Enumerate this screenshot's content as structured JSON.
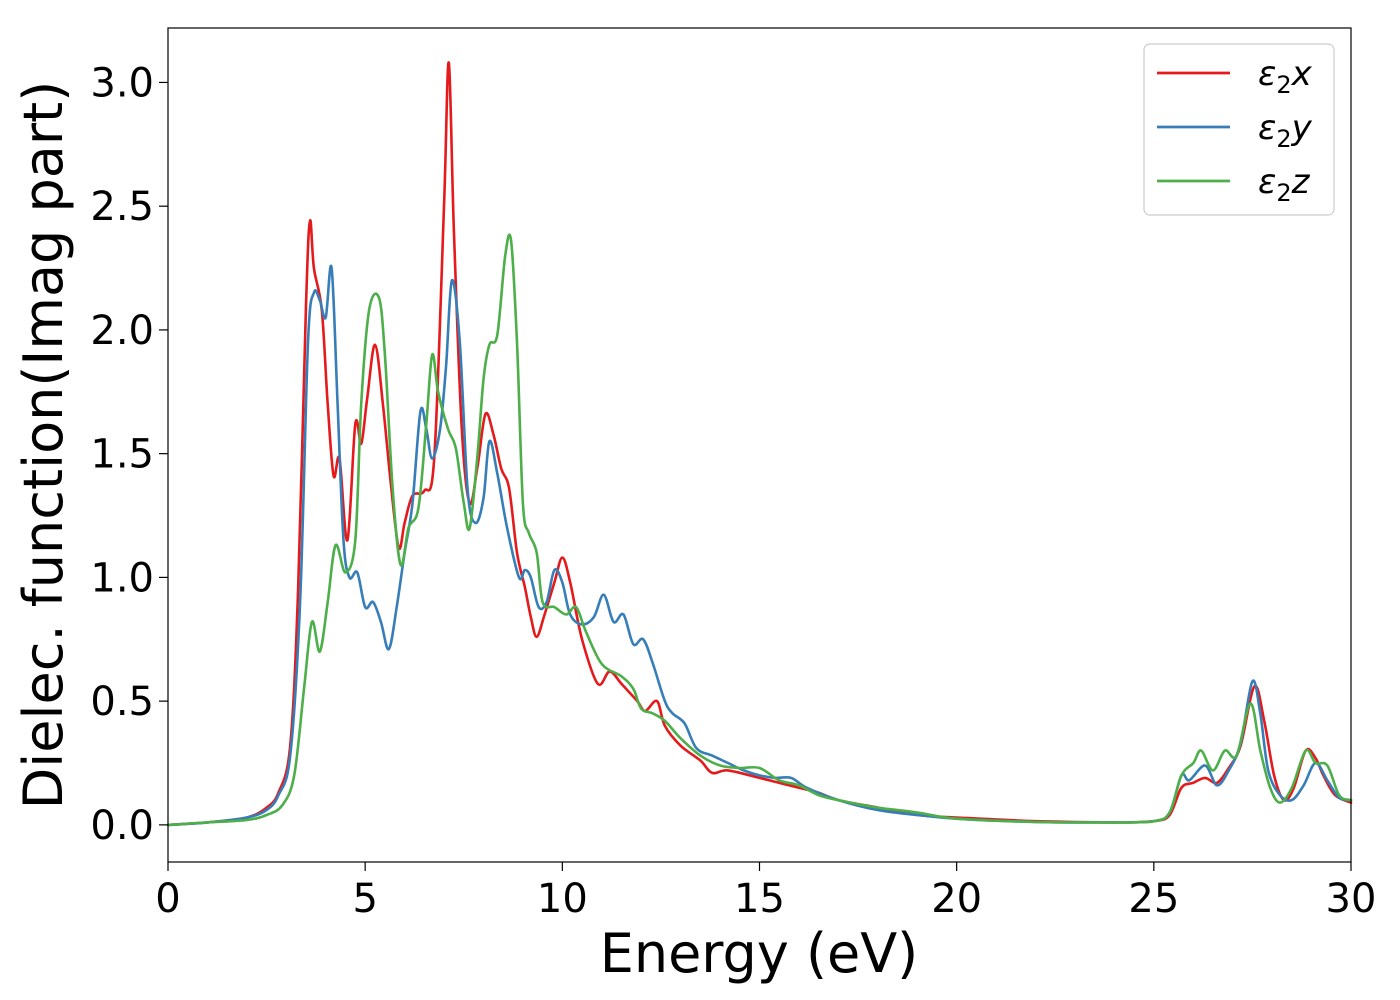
{
  "chart_data": {
    "type": "line",
    "title": "",
    "xlabel": "Energy (eV)",
    "ylabel": "Dielec. function(Imag part)",
    "xlim": [
      0,
      30
    ],
    "ylim": [
      -0.15,
      3.22
    ],
    "xticks": [
      0,
      5,
      10,
      15,
      20,
      25,
      30
    ],
    "xtick_labels": [
      "0",
      "5",
      "10",
      "15",
      "20",
      "25",
      "30"
    ],
    "yticks": [
      0.0,
      0.5,
      1.0,
      1.5,
      2.0,
      2.5,
      3.0
    ],
    "ytick_labels": [
      "0.0",
      "0.5",
      "1.0",
      "1.5",
      "2.0",
      "2.5",
      "3.0"
    ],
    "grid": false,
    "legend": "top-right",
    "series": [
      {
        "name": "ε2x",
        "legend_base": "ε",
        "legend_sub": "2",
        "legend_var": "x",
        "color": "#e41a1c",
        "points": [
          [
            0,
            0
          ],
          [
            1,
            0.01
          ],
          [
            2,
            0.03
          ],
          [
            2.5,
            0.07
          ],
          [
            2.8,
            0.13
          ],
          [
            3.1,
            0.32
          ],
          [
            3.3,
            0.95
          ],
          [
            3.5,
            2.1
          ],
          [
            3.6,
            2.44
          ],
          [
            3.7,
            2.25
          ],
          [
            3.9,
            2.08
          ],
          [
            4.05,
            1.7
          ],
          [
            4.2,
            1.41
          ],
          [
            4.35,
            1.48
          ],
          [
            4.55,
            1.15
          ],
          [
            4.75,
            1.62
          ],
          [
            4.9,
            1.54
          ],
          [
            5.05,
            1.72
          ],
          [
            5.25,
            1.94
          ],
          [
            5.45,
            1.7
          ],
          [
            5.65,
            1.38
          ],
          [
            5.85,
            1.12
          ],
          [
            6.0,
            1.22
          ],
          [
            6.2,
            1.33
          ],
          [
            6.5,
            1.35
          ],
          [
            6.75,
            1.48
          ],
          [
            7.0,
            2.5
          ],
          [
            7.12,
            3.08
          ],
          [
            7.25,
            2.4
          ],
          [
            7.45,
            1.6
          ],
          [
            7.65,
            1.3
          ],
          [
            7.85,
            1.45
          ],
          [
            8.05,
            1.66
          ],
          [
            8.25,
            1.58
          ],
          [
            8.45,
            1.44
          ],
          [
            8.65,
            1.36
          ],
          [
            8.85,
            1.1
          ],
          [
            9.05,
            0.96
          ],
          [
            9.2,
            0.84
          ],
          [
            9.35,
            0.76
          ],
          [
            9.55,
            0.85
          ],
          [
            9.8,
            0.98
          ],
          [
            10.0,
            1.08
          ],
          [
            10.2,
            0.98
          ],
          [
            10.5,
            0.75
          ],
          [
            10.9,
            0.57
          ],
          [
            11.2,
            0.62
          ],
          [
            11.5,
            0.57
          ],
          [
            11.9,
            0.5
          ],
          [
            12.1,
            0.46
          ],
          [
            12.4,
            0.5
          ],
          [
            12.6,
            0.4
          ],
          [
            13,
            0.32
          ],
          [
            13.5,
            0.26
          ],
          [
            13.8,
            0.21
          ],
          [
            14.2,
            0.22
          ],
          [
            15,
            0.19
          ],
          [
            15.5,
            0.17
          ],
          [
            16,
            0.15
          ],
          [
            16.5,
            0.13
          ],
          [
            17,
            0.1
          ],
          [
            18,
            0.07
          ],
          [
            19,
            0.04
          ],
          [
            20,
            0.03
          ],
          [
            22,
            0.015
          ],
          [
            24,
            0.01
          ],
          [
            25,
            0.015
          ],
          [
            25.4,
            0.04
          ],
          [
            25.7,
            0.15
          ],
          [
            26,
            0.17
          ],
          [
            26.3,
            0.19
          ],
          [
            26.6,
            0.17
          ],
          [
            26.9,
            0.23
          ],
          [
            27.2,
            0.32
          ],
          [
            27.55,
            0.56
          ],
          [
            27.8,
            0.42
          ],
          [
            28.05,
            0.2
          ],
          [
            28.3,
            0.1
          ],
          [
            28.55,
            0.15
          ],
          [
            28.85,
            0.3
          ],
          [
            29.1,
            0.27
          ],
          [
            29.3,
            0.2
          ],
          [
            29.6,
            0.12
          ],
          [
            30,
            0.09
          ]
        ]
      },
      {
        "name": "ε2y",
        "legend_base": "ε",
        "legend_sub": "2",
        "legend_var": "y",
        "color": "#377eb8",
        "points": [
          [
            0,
            0
          ],
          [
            1,
            0.01
          ],
          [
            2,
            0.03
          ],
          [
            2.5,
            0.06
          ],
          [
            2.8,
            0.12
          ],
          [
            3.1,
            0.28
          ],
          [
            3.35,
            0.9
          ],
          [
            3.55,
            1.95
          ],
          [
            3.7,
            2.15
          ],
          [
            3.85,
            2.12
          ],
          [
            4.0,
            2.05
          ],
          [
            4.15,
            2.25
          ],
          [
            4.3,
            1.7
          ],
          [
            4.45,
            1.15
          ],
          [
            4.6,
            1.0
          ],
          [
            4.8,
            1.02
          ],
          [
            5.0,
            0.88
          ],
          [
            5.2,
            0.9
          ],
          [
            5.4,
            0.82
          ],
          [
            5.6,
            0.71
          ],
          [
            5.8,
            0.88
          ],
          [
            6.0,
            1.1
          ],
          [
            6.2,
            1.3
          ],
          [
            6.4,
            1.67
          ],
          [
            6.55,
            1.6
          ],
          [
            6.7,
            1.48
          ],
          [
            6.9,
            1.6
          ],
          [
            7.05,
            1.85
          ],
          [
            7.2,
            2.2
          ],
          [
            7.4,
            1.95
          ],
          [
            7.6,
            1.35
          ],
          [
            7.8,
            1.22
          ],
          [
            8.0,
            1.32
          ],
          [
            8.15,
            1.55
          ],
          [
            8.35,
            1.42
          ],
          [
            8.6,
            1.2
          ],
          [
            8.9,
            1.0
          ],
          [
            9.05,
            1.03
          ],
          [
            9.2,
            1.0
          ],
          [
            9.4,
            0.88
          ],
          [
            9.6,
            0.9
          ],
          [
            9.8,
            1.03
          ],
          [
            10.0,
            0.98
          ],
          [
            10.2,
            0.85
          ],
          [
            10.5,
            0.81
          ],
          [
            10.8,
            0.84
          ],
          [
            11.05,
            0.93
          ],
          [
            11.3,
            0.82
          ],
          [
            11.55,
            0.85
          ],
          [
            11.8,
            0.73
          ],
          [
            12.05,
            0.75
          ],
          [
            12.3,
            0.65
          ],
          [
            12.6,
            0.5
          ],
          [
            12.8,
            0.45
          ],
          [
            13.1,
            0.41
          ],
          [
            13.4,
            0.31
          ],
          [
            13.8,
            0.28
          ],
          [
            14.2,
            0.25
          ],
          [
            14.6,
            0.22
          ],
          [
            15,
            0.2
          ],
          [
            15.4,
            0.19
          ],
          [
            15.8,
            0.19
          ],
          [
            16.2,
            0.15
          ],
          [
            17,
            0.1
          ],
          [
            18,
            0.06
          ],
          [
            19,
            0.04
          ],
          [
            20,
            0.025
          ],
          [
            22,
            0.012
          ],
          [
            24,
            0.01
          ],
          [
            25,
            0.015
          ],
          [
            25.4,
            0.05
          ],
          [
            25.7,
            0.2
          ],
          [
            25.9,
            0.18
          ],
          [
            26.3,
            0.24
          ],
          [
            26.6,
            0.16
          ],
          [
            26.9,
            0.22
          ],
          [
            27.2,
            0.33
          ],
          [
            27.5,
            0.58
          ],
          [
            27.7,
            0.45
          ],
          [
            27.9,
            0.22
          ],
          [
            28.2,
            0.12
          ],
          [
            28.5,
            0.1
          ],
          [
            28.8,
            0.16
          ],
          [
            29.1,
            0.25
          ],
          [
            29.4,
            0.18
          ],
          [
            29.7,
            0.11
          ],
          [
            30,
            0.1
          ]
        ]
      },
      {
        "name": "ε2z",
        "legend_base": "ε",
        "legend_sub": "2",
        "legend_var": "z",
        "color": "#4daf4a",
        "points": [
          [
            0,
            0
          ],
          [
            1,
            0.01
          ],
          [
            2,
            0.02
          ],
          [
            2.5,
            0.04
          ],
          [
            2.9,
            0.08
          ],
          [
            3.2,
            0.2
          ],
          [
            3.45,
            0.55
          ],
          [
            3.65,
            0.82
          ],
          [
            3.85,
            0.7
          ],
          [
            4.05,
            0.9
          ],
          [
            4.25,
            1.13
          ],
          [
            4.5,
            1.02
          ],
          [
            4.75,
            1.15
          ],
          [
            4.9,
            1.7
          ],
          [
            5.1,
            2.08
          ],
          [
            5.35,
            2.13
          ],
          [
            5.5,
            1.9
          ],
          [
            5.7,
            1.35
          ],
          [
            5.9,
            1.05
          ],
          [
            6.1,
            1.2
          ],
          [
            6.35,
            1.28
          ],
          [
            6.55,
            1.62
          ],
          [
            6.7,
            1.9
          ],
          [
            6.85,
            1.75
          ],
          [
            7.1,
            1.6
          ],
          [
            7.3,
            1.52
          ],
          [
            7.5,
            1.3
          ],
          [
            7.65,
            1.2
          ],
          [
            7.85,
            1.5
          ],
          [
            8.0,
            1.8
          ],
          [
            8.15,
            1.94
          ],
          [
            8.35,
            1.98
          ],
          [
            8.55,
            2.3
          ],
          [
            8.7,
            2.36
          ],
          [
            8.85,
            1.95
          ],
          [
            9.0,
            1.3
          ],
          [
            9.15,
            1.18
          ],
          [
            9.35,
            1.1
          ],
          [
            9.5,
            0.9
          ],
          [
            9.8,
            0.88
          ],
          [
            10.1,
            0.85
          ],
          [
            10.35,
            0.88
          ],
          [
            10.6,
            0.78
          ],
          [
            11.0,
            0.65
          ],
          [
            11.5,
            0.6
          ],
          [
            11.8,
            0.55
          ],
          [
            12.0,
            0.47
          ],
          [
            12.3,
            0.45
          ],
          [
            12.6,
            0.42
          ],
          [
            13,
            0.35
          ],
          [
            13.5,
            0.28
          ],
          [
            14,
            0.24
          ],
          [
            14.5,
            0.23
          ],
          [
            15,
            0.23
          ],
          [
            15.5,
            0.18
          ],
          [
            16,
            0.16
          ],
          [
            16.5,
            0.12
          ],
          [
            17,
            0.1
          ],
          [
            18,
            0.07
          ],
          [
            19,
            0.05
          ],
          [
            20,
            0.025
          ],
          [
            22,
            0.012
          ],
          [
            24,
            0.01
          ],
          [
            25,
            0.015
          ],
          [
            25.4,
            0.05
          ],
          [
            25.7,
            0.2
          ],
          [
            26.0,
            0.25
          ],
          [
            26.2,
            0.3
          ],
          [
            26.5,
            0.22
          ],
          [
            26.8,
            0.3
          ],
          [
            27.1,
            0.28
          ],
          [
            27.45,
            0.49
          ],
          [
            27.7,
            0.3
          ],
          [
            27.95,
            0.15
          ],
          [
            28.2,
            0.09
          ],
          [
            28.5,
            0.15
          ],
          [
            28.85,
            0.3
          ],
          [
            29.1,
            0.25
          ],
          [
            29.4,
            0.24
          ],
          [
            29.7,
            0.12
          ],
          [
            30,
            0.1
          ]
        ]
      }
    ]
  }
}
